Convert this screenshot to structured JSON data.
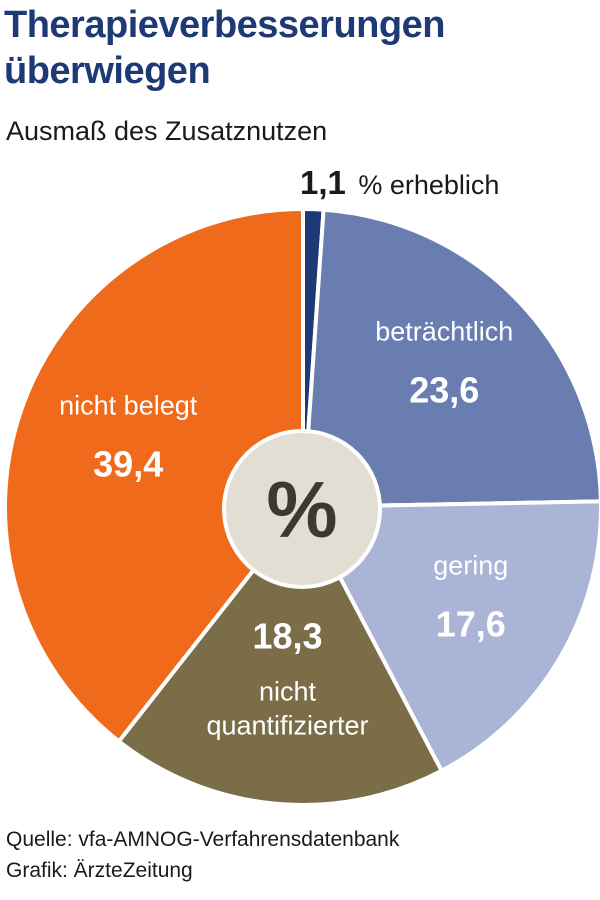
{
  "title_lines": [
    "Therapieverbesserungen",
    "überwiegen"
  ],
  "subtitle": "Ausmaß des Zusatznutzen",
  "chart_data": {
    "type": "pie",
    "title": "Therapieverbesserungen überwiegen",
    "subtitle": "Ausmaß des Zusatznutzen",
    "unit": "%",
    "center_label": "%",
    "slices": [
      {
        "label": "erheblich",
        "value": 1.1,
        "value_text": "1,1",
        "color": "#1d3a77"
      },
      {
        "label": "beträchtlich",
        "value": 23.6,
        "value_text": "23,6",
        "color": "#6a7db1"
      },
      {
        "label": "gering",
        "value": 17.6,
        "value_text": "17,6",
        "color": "#aab4d6"
      },
      {
        "label": "nicht quantifizierter",
        "value": 18.3,
        "value_text": "18,3",
        "color": "#7a6d48"
      },
      {
        "label": "nicht belegt",
        "value": 39.4,
        "value_text": "39,4",
        "color": "#f06a1c"
      }
    ]
  },
  "callout": {
    "value": "1,1",
    "suffix": "% erheblich"
  },
  "footer": {
    "source": "Quelle: vfa-AMNOG-Verfahrensdatenbank",
    "credit": "Grafik: ÄrzteZeitung"
  },
  "colors": {
    "title": "#1d3a77",
    "center_disc": "#e2ded4",
    "center_text": "#3a3a2e"
  }
}
